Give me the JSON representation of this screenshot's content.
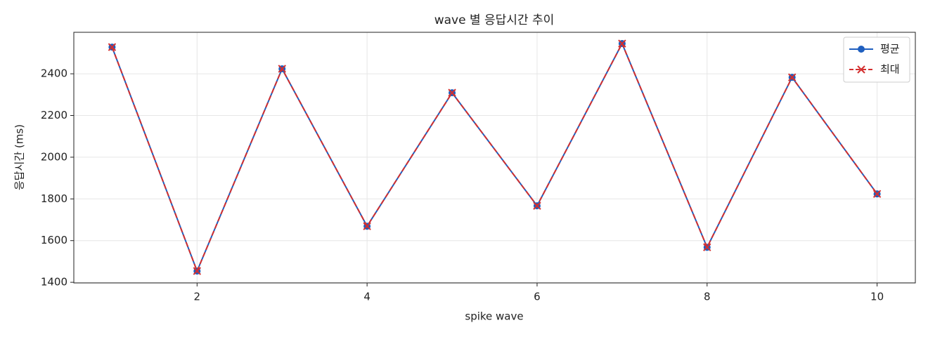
{
  "chart_data": {
    "type": "line",
    "title": "wave 별 응답시간 추이",
    "xlabel": "spike wave",
    "ylabel": "응답시간 (ms)",
    "x": [
      1,
      2,
      3,
      4,
      5,
      6,
      7,
      8,
      9,
      10
    ],
    "series": [
      {
        "name": "평균",
        "color": "#1f5fbf",
        "marker": "o",
        "linestyle": "solid",
        "values": [
          2528,
          1454,
          2424,
          1669,
          2309,
          1767,
          2545,
          1568,
          2383,
          1824
        ]
      },
      {
        "name": "최대",
        "color": "#d32f2f",
        "marker": "x",
        "linestyle": "dashed",
        "values": [
          2528,
          1454,
          2424,
          1669,
          2309,
          1767,
          2545,
          1568,
          2383,
          1824
        ]
      }
    ],
    "xlim": [
      0.55,
      10.45
    ],
    "xticks": [
      2,
      4,
      6,
      8,
      10
    ],
    "ylim": [
      1397,
      2599
    ],
    "yticks": [
      1400,
      1600,
      1800,
      2000,
      2200,
      2400
    ],
    "grid": true,
    "legend": "upper right"
  }
}
